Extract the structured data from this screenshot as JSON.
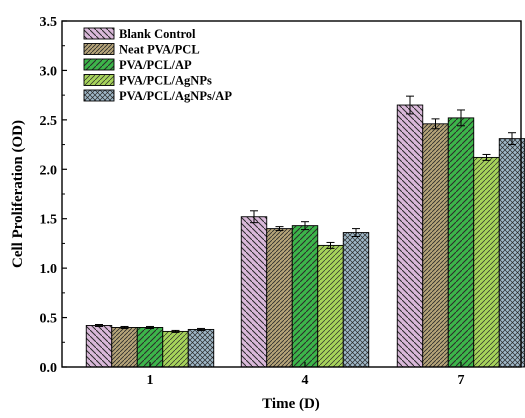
{
  "chart_data": {
    "type": "bar",
    "xlabel": "Time (D)",
    "ylabel": "Cell Proliferation (OD)",
    "ylim": [
      0,
      3.5
    ],
    "yticks": [
      "0.0",
      "0.5",
      "1.0",
      "1.5",
      "2.0",
      "2.5",
      "3.0",
      "3.5"
    ],
    "categories": [
      "1",
      "4",
      "7"
    ],
    "legend_position": "top-left",
    "series": [
      {
        "name": "Blank Control",
        "values": [
          0.42,
          1.52,
          2.65
        ],
        "errors": [
          0.01,
          0.06,
          0.09
        ],
        "color": "#d9b8d9",
        "hatch": "backslash"
      },
      {
        "name": "Neat PVA/PCL",
        "values": [
          0.4,
          1.4,
          2.46
        ],
        "errors": [
          0.01,
          0.02,
          0.05
        ],
        "color": "#b5a378",
        "hatch": "slash-dense"
      },
      {
        "name": "PVA/PCL/AP",
        "values": [
          0.4,
          1.43,
          2.52
        ],
        "errors": [
          0.01,
          0.04,
          0.08
        ],
        "color": "#3cb54a",
        "hatch": "slash"
      },
      {
        "name": "PVA/PCL/AgNPs",
        "values": [
          0.36,
          1.23,
          2.12
        ],
        "errors": [
          0.01,
          0.03,
          0.03
        ],
        "color": "#a6d35a",
        "hatch": "slash-light"
      },
      {
        "name": "PVA/PCL/AgNPs/AP",
        "values": [
          0.38,
          1.36,
          2.31
        ],
        "errors": [
          0.01,
          0.04,
          0.06
        ],
        "color": "#9fb8c8",
        "hatch": "cross"
      }
    ]
  }
}
